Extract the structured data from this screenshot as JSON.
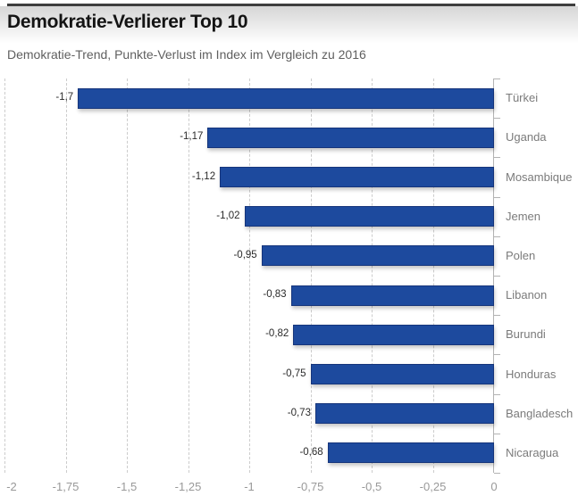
{
  "header": {
    "title": "Demokratie-Verlierer Top 10",
    "subtitle": "Demokratie-Trend, Punkte-Verlust im Index im Vergleich zu 2016"
  },
  "colors": {
    "bar_fill": "#1d4a9e",
    "bar_border": "#16357b",
    "gridline": "#cccccc",
    "axis_line": "#b3b3b3",
    "title_text": "#141414",
    "subtitle_text": "#5f5f5f",
    "category_text": "#7b7b7b",
    "value_text": "#2a2a2a",
    "axis_tick_text": "#999999"
  },
  "chart_data": {
    "type": "bar",
    "orientation": "horizontal",
    "title": "Demokratie-Verlierer Top 10",
    "subtitle": "Demokratie-Trend, Punkte-Verlust im Index im Vergleich zu 2016",
    "categories": [
      "Türkei",
      "Uganda",
      "Mosambique",
      "Jemen",
      "Polen",
      "Libanon",
      "Burundi",
      "Honduras",
      "Bangladesch",
      "Nicaragua"
    ],
    "values": [
      -1.7,
      -1.17,
      -1.12,
      -1.02,
      -0.95,
      -0.83,
      -0.82,
      -0.75,
      -0.73,
      -0.68
    ],
    "value_labels": [
      "-1,7",
      "-1,17",
      "-1,12",
      "-1,02",
      "-0,95",
      "-0,83",
      "-0,82",
      "-0,75",
      "-0,73",
      "-0,68"
    ],
    "xlim": [
      -2,
      0
    ],
    "x_ticks": [
      -2,
      -1.75,
      -1.5,
      -1.25,
      -1,
      -0.75,
      -0.5,
      -0.25,
      0
    ],
    "x_tick_labels": [
      "-2",
      "-1,75",
      "-1,5",
      "-1,25",
      "-1",
      "-0,75",
      "-0,5",
      "-0,25",
      "0"
    ],
    "grid": "vertical-dashed",
    "legend": "none",
    "bar_color": "#1d4a9e",
    "category_label_position": "right",
    "value_label_position": "left-of-bar"
  }
}
